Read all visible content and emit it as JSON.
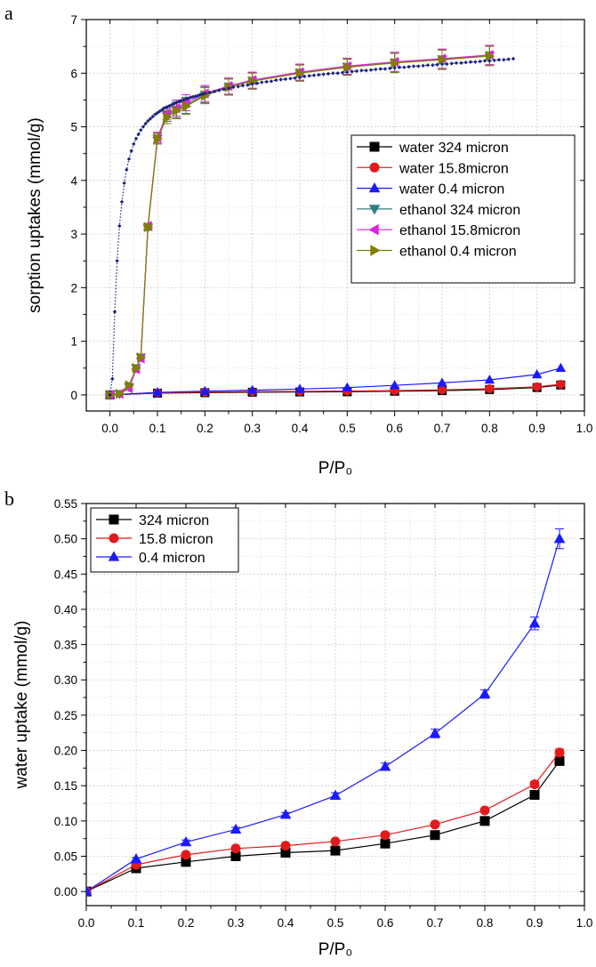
{
  "chart_data": [
    {
      "panel_label": "a",
      "type": "scatter",
      "xlabel": "P/P₀",
      "ylabel": "sorption uptakes (mmol/g)",
      "xlim": [
        -0.05,
        1.0
      ],
      "ylim": [
        -0.3,
        7
      ],
      "xticks": [
        "0.0",
        "0.1",
        "0.2",
        "0.3",
        "0.4",
        "0.5",
        "0.6",
        "0.7",
        "0.8",
        "0.9",
        "1.0"
      ],
      "yticks": [
        "0",
        "1",
        "2",
        "3",
        "4",
        "5",
        "6",
        "7"
      ],
      "grid": true,
      "legend_position": "center-right",
      "series": [
        {
          "name": "water 324 micron",
          "color": "#000000",
          "marker": "square",
          "x": [
            0,
            0.1,
            0.2,
            0.3,
            0.4,
            0.5,
            0.6,
            0.7,
            0.8,
            0.9,
            0.95
          ],
          "y": [
            0,
            0.033,
            0.042,
            0.05,
            0.055,
            0.058,
            0.068,
            0.08,
            0.1,
            0.137,
            0.185
          ]
        },
        {
          "name": "water 15.8micron",
          "color": "#e31a1c",
          "marker": "circle",
          "x": [
            0,
            0.1,
            0.2,
            0.3,
            0.4,
            0.5,
            0.6,
            0.7,
            0.8,
            0.9,
            0.95
          ],
          "y": [
            0,
            0.038,
            0.052,
            0.061,
            0.065,
            0.071,
            0.08,
            0.095,
            0.115,
            0.152,
            0.197
          ]
        },
        {
          "name": "water 0.4 micron",
          "color": "#1a1aff",
          "marker": "triangle-up",
          "x": [
            0,
            0.1,
            0.2,
            0.3,
            0.4,
            0.5,
            0.6,
            0.7,
            0.8,
            0.9,
            0.95
          ],
          "y": [
            0,
            0.046,
            0.07,
            0.088,
            0.109,
            0.136,
            0.177,
            0.224,
            0.28,
            0.38,
            0.5
          ]
        },
        {
          "name": "ethanol 324 micron",
          "color": "#2f7f7f",
          "marker": "triangle-down",
          "x": [
            0,
            0.02,
            0.04,
            0.055,
            0.065,
            0.08,
            0.1,
            0.12,
            0.14,
            0.16,
            0.2,
            0.25,
            0.3,
            0.4,
            0.5,
            0.6,
            0.7,
            0.8
          ],
          "y": [
            0,
            0.02,
            0.15,
            0.5,
            0.7,
            3.12,
            4.78,
            5.22,
            5.32,
            5.4,
            5.6,
            5.75,
            5.86,
            6.01,
            6.12,
            6.2,
            6.26,
            6.33
          ],
          "yerr": [
            0,
            0,
            0,
            0,
            0,
            0.05,
            0.1,
            0.12,
            0.15,
            0.15,
            0.15,
            0.15,
            0.15,
            0.15,
            0.15,
            0.18,
            0.18,
            0.18
          ]
        },
        {
          "name": "ethanol 15.8micron",
          "color": "#e020e0",
          "marker": "triangle-left",
          "x": [
            0,
            0.02,
            0.04,
            0.055,
            0.065,
            0.08,
            0.1,
            0.12,
            0.14,
            0.16,
            0.2,
            0.25,
            0.3,
            0.4,
            0.5,
            0.6,
            0.7,
            0.8
          ],
          "y": [
            0,
            0.02,
            0.12,
            0.48,
            0.68,
            3.15,
            4.8,
            5.25,
            5.35,
            5.45,
            5.62,
            5.76,
            5.87,
            6.02,
            6.13,
            6.21,
            6.27,
            6.34
          ],
          "yerr": [
            0,
            0,
            0,
            0,
            0,
            0.05,
            0.1,
            0.12,
            0.15,
            0.15,
            0.15,
            0.15,
            0.15,
            0.15,
            0.15,
            0.18,
            0.18,
            0.18
          ]
        },
        {
          "name": "ethanol  0.4 micron",
          "color": "#7f7f00",
          "marker": "triangle-right",
          "x": [
            0,
            0.02,
            0.04,
            0.055,
            0.065,
            0.08,
            0.1,
            0.12,
            0.14,
            0.16,
            0.2,
            0.25,
            0.3,
            0.4,
            0.5,
            0.6,
            0.7,
            0.8
          ],
          "y": [
            0,
            0.02,
            0.18,
            0.5,
            0.7,
            3.13,
            4.78,
            5.18,
            5.3,
            5.38,
            5.58,
            5.74,
            5.85,
            6.0,
            6.11,
            6.19,
            6.25,
            6.32
          ],
          "yerr": [
            0,
            0,
            0,
            0,
            0,
            0.05,
            0.1,
            0.12,
            0.15,
            0.15,
            0.15,
            0.15,
            0.15,
            0.15,
            0.15,
            0.18,
            0.18,
            0.18
          ]
        },
        {
          "name": "",
          "color": "#1a237e",
          "marker": "small-diamond",
          "line": "dotted",
          "x": [
            0,
            0.005,
            0.01,
            0.015,
            0.02,
            0.025,
            0.03,
            0.035,
            0.04,
            0.045,
            0.05,
            0.055,
            0.06,
            0.065,
            0.07,
            0.075,
            0.08,
            0.085,
            0.09,
            0.095,
            0.1,
            0.105,
            0.11,
            0.115,
            0.12,
            0.125,
            0.13,
            0.135,
            0.14,
            0.145,
            0.15,
            0.155,
            0.16,
            0.165,
            0.17,
            0.175,
            0.18,
            0.185,
            0.19,
            0.195,
            0.2,
            0.21,
            0.22,
            0.23,
            0.24,
            0.25,
            0.26,
            0.27,
            0.28,
            0.29,
            0.3,
            0.31,
            0.32,
            0.33,
            0.34,
            0.35,
            0.36,
            0.37,
            0.38,
            0.39,
            0.4,
            0.41,
            0.42,
            0.43,
            0.44,
            0.45,
            0.46,
            0.47,
            0.48,
            0.49,
            0.5,
            0.51,
            0.52,
            0.53,
            0.54,
            0.55,
            0.56,
            0.57,
            0.58,
            0.59,
            0.6,
            0.61,
            0.62,
            0.63,
            0.64,
            0.65,
            0.66,
            0.67,
            0.68,
            0.69,
            0.7,
            0.71,
            0.72,
            0.73,
            0.74,
            0.75,
            0.76,
            0.77,
            0.78,
            0.79,
            0.8,
            0.81,
            0.82,
            0.83,
            0.84,
            0.85
          ],
          "y": [
            0,
            0.3,
            1.55,
            2.5,
            3.15,
            3.6,
            3.95,
            4.2,
            4.4,
            4.55,
            4.68,
            4.78,
            4.86,
            4.94,
            5.0,
            5.06,
            5.11,
            5.15,
            5.19,
            5.23,
            5.26,
            5.29,
            5.32,
            5.35,
            5.37,
            5.39,
            5.41,
            5.43,
            5.45,
            5.47,
            5.49,
            5.5,
            5.52,
            5.53,
            5.55,
            5.56,
            5.57,
            5.58,
            5.6,
            5.61,
            5.62,
            5.64,
            5.66,
            5.68,
            5.7,
            5.72,
            5.74,
            5.75,
            5.77,
            5.78,
            5.8,
            5.81,
            5.83,
            5.84,
            5.85,
            5.87,
            5.88,
            5.89,
            5.9,
            5.91,
            5.92,
            5.94,
            5.95,
            5.96,
            5.97,
            5.98,
            5.99,
            6.0,
            6.0,
            6.01,
            6.02,
            6.03,
            6.04,
            6.05,
            6.05,
            6.06,
            6.07,
            6.08,
            6.08,
            6.09,
            6.1,
            6.11,
            6.11,
            6.12,
            6.13,
            6.13,
            6.14,
            6.15,
            6.15,
            6.16,
            6.17,
            6.17,
            6.18,
            6.19,
            6.19,
            6.2,
            6.21,
            6.21,
            6.22,
            6.23,
            6.23,
            6.24,
            6.25,
            6.25,
            6.26,
            6.27
          ]
        }
      ]
    },
    {
      "panel_label": "b",
      "type": "line",
      "xlabel": "P/P₀",
      "ylabel": "water uptake (mmol/g)",
      "xlim": [
        0,
        1.0
      ],
      "ylim": [
        -0.02,
        0.55
      ],
      "xticks": [
        "0.0",
        "0.1",
        "0.2",
        "0.3",
        "0.4",
        "0.5",
        "0.6",
        "0.7",
        "0.8",
        "0.9",
        "1.0"
      ],
      "yticks": [
        "0.00",
        "0.05",
        "0.10",
        "0.15",
        "0.20",
        "0.25",
        "0.30",
        "0.35",
        "0.40",
        "0.45",
        "0.50",
        "0.55"
      ],
      "grid": true,
      "legend_position": "top-left",
      "series": [
        {
          "name": "324 micron",
          "color": "#000000",
          "marker": "square",
          "x": [
            0,
            0.1,
            0.2,
            0.3,
            0.4,
            0.5,
            0.6,
            0.7,
            0.8,
            0.9,
            0.95
          ],
          "y": [
            0,
            0.033,
            0.042,
            0.05,
            0.055,
            0.058,
            0.068,
            0.08,
            0.1,
            0.137,
            0.185
          ],
          "yerr": [
            0,
            0.002,
            0.002,
            0.002,
            0.002,
            0.002,
            0.003,
            0.003,
            0.003,
            0.004,
            0.005
          ]
        },
        {
          "name": "15.8 micron",
          "color": "#e31a1c",
          "marker": "circle",
          "x": [
            0,
            0.1,
            0.2,
            0.3,
            0.4,
            0.5,
            0.6,
            0.7,
            0.8,
            0.9,
            0.95
          ],
          "y": [
            0,
            0.038,
            0.052,
            0.061,
            0.065,
            0.071,
            0.08,
            0.095,
            0.115,
            0.152,
            0.197
          ],
          "yerr": [
            0,
            0.002,
            0.002,
            0.002,
            0.002,
            0.002,
            0.003,
            0.003,
            0.003,
            0.004,
            0.005
          ]
        },
        {
          "name": "0.4 micron",
          "color": "#1a1aff",
          "marker": "triangle-up",
          "x": [
            0,
            0.1,
            0.2,
            0.3,
            0.4,
            0.5,
            0.6,
            0.7,
            0.8,
            0.9,
            0.95
          ],
          "y": [
            0,
            0.046,
            0.07,
            0.088,
            0.109,
            0.136,
            0.177,
            0.224,
            0.28,
            0.38,
            0.5
          ],
          "yerr": [
            0,
            0.002,
            0.003,
            0.003,
            0.003,
            0.004,
            0.005,
            0.006,
            0.006,
            0.009,
            0.014
          ]
        }
      ]
    }
  ]
}
